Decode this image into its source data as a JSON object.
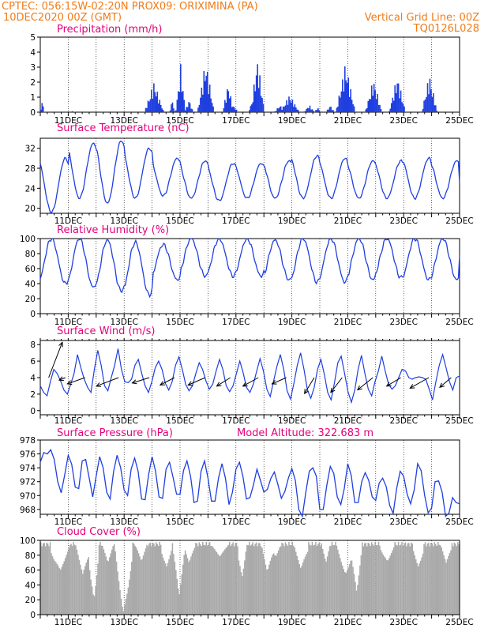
{
  "header": {
    "line1_left": "CPTEC:   056:15W-02:20N   PROX09: ORIXIMINA (PA)",
    "line2_left": "10DEC2020 00Z (GMT)",
    "line2_right": "Vertical Grid Line: 00Z",
    "line3_right": "TQ0126L028"
  },
  "colors": {
    "header": "#f07c18",
    "title": "#e4007c",
    "series": "#1f3fe0",
    "cloud": "#a9a9a9",
    "arrow": "#000000"
  },
  "chart_data": [
    {
      "type": "bar",
      "title": "Precipitation (mm/h)",
      "ylim": [
        0,
        5
      ],
      "yticks": [
        "0",
        "1",
        "2",
        "3",
        "4",
        "5"
      ],
      "xticks": [
        "11DEC",
        "13DEC",
        "15DEC",
        "17DEC",
        "19DEC",
        "21DEC",
        "23DEC",
        "25DEC"
      ],
      "x_start_day": 10,
      "events": [
        {
          "day": 10.05,
          "peak": 0.8,
          "width": 0.08
        },
        {
          "day": 11.15,
          "peak": 0.1,
          "width": 0.08
        },
        {
          "day": 14.05,
          "peak": 2.1,
          "width": 0.35
        },
        {
          "day": 14.7,
          "peak": 0.9,
          "width": 0.1
        },
        {
          "day": 15.0,
          "peak": 3.2,
          "width": 0.18
        },
        {
          "day": 15.3,
          "peak": 0.9,
          "width": 0.15
        },
        {
          "day": 15.9,
          "peak": 3.6,
          "width": 0.3
        },
        {
          "day": 16.7,
          "peak": 2.0,
          "width": 0.2
        },
        {
          "day": 16.9,
          "peak": 0.5,
          "width": 0.15
        },
        {
          "day": 17.5,
          "peak": 0.5,
          "width": 0.08
        },
        {
          "day": 17.75,
          "peak": 3.7,
          "width": 0.25
        },
        {
          "day": 18.55,
          "peak": 0.5,
          "width": 0.2
        },
        {
          "day": 18.9,
          "peak": 1.2,
          "width": 0.35
        },
        {
          "day": 19.6,
          "peak": 0.5,
          "width": 0.2
        },
        {
          "day": 19.9,
          "peak": 0.4,
          "width": 0.1
        },
        {
          "day": 20.35,
          "peak": 0.5,
          "width": 0.15
        },
        {
          "day": 20.9,
          "peak": 3.4,
          "width": 0.35
        },
        {
          "day": 21.9,
          "peak": 2.3,
          "width": 0.3
        },
        {
          "day": 22.75,
          "peak": 2.5,
          "width": 0.3
        },
        {
          "day": 23.9,
          "peak": 2.6,
          "width": 0.28
        }
      ]
    },
    {
      "type": "line",
      "title": "Surface Temperature (nC)",
      "ylim": [
        19,
        34
      ],
      "yticks": [
        "20",
        "24",
        "28",
        "32"
      ],
      "xticks": [
        "11DEC",
        "13DEC",
        "15DEC",
        "17DEC",
        "19DEC",
        "21DEC",
        "23DEC",
        "25DEC"
      ],
      "x_start_day": 10,
      "daily_min": [
        19.2,
        22.0,
        21.0,
        22.0,
        22.5,
        22.0,
        21.5,
        22.0,
        22.0,
        22.0,
        22.0,
        22.0,
        22.0,
        22.0,
        22.0,
        23.0
      ],
      "daily_max": [
        30.0,
        33.0,
        33.5,
        32.0,
        30.0,
        29.5,
        29.0,
        29.0,
        29.5,
        30.5,
        30.0,
        29.5,
        29.5,
        30.0,
        29.5,
        31.5
      ],
      "end_value": 25.0
    },
    {
      "type": "line",
      "title": "Relative Humidity (%)",
      "ylim": [
        0,
        100
      ],
      "yticks": [
        "0",
        "20",
        "40",
        "60",
        "80",
        "100"
      ],
      "xticks": [
        "11DEC",
        "13DEC",
        "15DEC",
        "17DEC",
        "19DEC",
        "21DEC",
        "23DEC",
        "25DEC"
      ],
      "x_start_day": 10,
      "daily_max": [
        100,
        100,
        98,
        95,
        92,
        100,
        100,
        100,
        98,
        100,
        100,
        100,
        100,
        100,
        100,
        100
      ],
      "daily_min": [
        40,
        35,
        30,
        25,
        45,
        50,
        50,
        50,
        45,
        42,
        42,
        45,
        48,
        45,
        45,
        40
      ],
      "end_value": 78
    },
    {
      "type": "line",
      "title": "Surface Wind (m/s)",
      "ylim": [
        -0.5,
        8.5
      ],
      "yticks": [
        "0",
        "2",
        "4",
        "6",
        "8"
      ],
      "xticks": [
        "11DEC",
        "13DEC",
        "15DEC",
        "17DEC",
        "19DEC",
        "21DEC",
        "23DEC",
        "25DEC"
      ],
      "x_start_day": 10,
      "values": [
        3,
        2.2,
        1.8,
        3.5,
        5.0,
        4.5,
        3.6,
        2.5,
        2.0,
        3.2,
        4.5,
        6.8,
        5.2,
        3.8,
        2.8,
        2.2,
        5.0,
        7.3,
        5.5,
        3.0,
        2.4,
        4.0,
        5.5,
        7.5,
        5.0,
        3.5,
        3.4,
        3.8,
        5.5,
        6.2,
        4.5,
        3.0,
        2.2,
        3.5,
        5.2,
        6.0,
        5.0,
        3.3,
        2.5,
        3.5,
        5.5,
        6.5,
        5.0,
        3.2,
        2.4,
        3.0,
        4.5,
        5.8,
        5.0,
        3.6,
        2.6,
        3.2,
        4.8,
        6.2,
        5.0,
        3.0,
        2.3,
        3.0,
        4.5,
        6.0,
        4.6,
        2.8,
        2.2,
        3.2,
        4.8,
        6.3,
        4.8,
        2.6,
        1.7,
        3.6,
        5.4,
        6.8,
        5.0,
        2.4,
        1.4,
        3.3,
        5.5,
        7.0,
        5.0,
        2.5,
        1.5,
        2.8,
        5.0,
        6.2,
        4.4,
        2.2,
        1.3,
        3.4,
        5.8,
        6.6,
        4.5,
        2.3,
        1.0,
        2.5,
        5.0,
        6.7,
        4.5,
        2.6,
        1.8,
        3.5,
        4.8,
        6.6,
        4.8,
        3.2,
        2.6,
        3.0,
        4.0,
        5.0,
        4.8,
        4.0,
        3.8,
        4.0,
        4.1,
        4.0,
        3.8,
        2.6,
        1.3,
        3.5,
        5.5,
        6.8,
        5.2,
        3.5,
        2.5,
        4.0,
        4.2
      ],
      "vectors": [
        {
          "day": 10.3,
          "len": 0.8,
          "dx": 0.48,
          "dy": 1.24
        },
        {
          "day": 10.9,
          "len": 0.6,
          "dx": -0.22,
          "dy": -0.09
        },
        {
          "day": 11.6,
          "len": 0.8,
          "dx": -0.62,
          "dy": -0.22
        },
        {
          "day": 12.8,
          "len": 0.95,
          "dx": -0.78,
          "dy": -0.3
        },
        {
          "day": 13.9,
          "len": 0.75,
          "dx": -0.6,
          "dy": -0.19
        },
        {
          "day": 14.8,
          "len": 0.75,
          "dx": -0.5,
          "dy": -0.26
        },
        {
          "day": 15.9,
          "len": 0.75,
          "dx": -0.6,
          "dy": -0.26
        },
        {
          "day": 16.8,
          "len": 0.7,
          "dx": -0.48,
          "dy": -0.3
        },
        {
          "day": 17.8,
          "len": 0.75,
          "dx": -0.54,
          "dy": -0.3
        },
        {
          "day": 18.8,
          "len": 0.7,
          "dx": -0.5,
          "dy": -0.22
        },
        {
          "day": 19.8,
          "len": 0.7,
          "dx": -0.34,
          "dy": -0.56
        },
        {
          "day": 20.8,
          "len": 0.7,
          "dx": -0.4,
          "dy": -0.52
        },
        {
          "day": 21.9,
          "len": 0.75,
          "dx": -0.54,
          "dy": -0.43
        },
        {
          "day": 22.9,
          "len": 0.7,
          "dx": -0.5,
          "dy": -0.3
        },
        {
          "day": 23.9,
          "len": 0.8,
          "dx": -0.66,
          "dy": -0.37
        },
        {
          "day": 24.7,
          "len": 0.55,
          "dx": -0.4,
          "dy": -0.34
        }
      ]
    },
    {
      "type": "line",
      "title": "Surface Pressure (hPa)",
      "subtitle": "Model Altitude: 322.683 m",
      "ylim": [
        967.3,
        978
      ],
      "yticks": [
        "968",
        "970",
        "972",
        "974",
        "976",
        "978"
      ],
      "xticks": [
        "11DEC",
        "13DEC",
        "15DEC",
        "17DEC",
        "19DEC",
        "21DEC",
        "23DEC",
        "25DEC"
      ],
      "x_start_day": 10,
      "values": [
        974.8,
        976.2,
        976.0,
        976.6,
        975.2,
        972.0,
        970.4,
        973.0,
        975.8,
        974.5,
        971.2,
        971.0,
        975.0,
        975.2,
        972.5,
        969.8,
        972.8,
        975.6,
        974.0,
        970.5,
        969.5,
        973.5,
        975.8,
        974.0,
        970.8,
        970.0,
        973.8,
        975.4,
        973.5,
        969.5,
        969.4,
        973.0,
        975.6,
        973.5,
        969.8,
        969.6,
        973.8,
        974.8,
        972.6,
        970.2,
        970.2,
        973.6,
        975.0,
        972.8,
        969.0,
        969.2,
        973.5,
        975.0,
        972.5,
        969.2,
        969.2,
        972.5,
        974.6,
        972.5,
        968.7,
        970.5,
        973.8,
        974.8,
        972.8,
        969.5,
        969.7,
        971.5,
        973.8,
        972.2,
        970.5,
        970.9,
        972.5,
        973.4,
        971.6,
        969.6,
        970.6,
        972.5,
        973.9,
        972.2,
        968.0,
        967.0,
        970.5,
        973.5,
        974.0,
        972.8,
        968.0,
        968.0,
        971.5,
        974.2,
        973.2,
        969.8,
        968.7,
        971.0,
        974.6,
        972.9,
        969.0,
        969.0,
        972.0,
        973.3,
        972.2,
        969.8,
        969.3,
        971.8,
        972.5,
        971.3,
        968.6,
        967.4,
        971.0,
        973.5,
        972.8,
        970.2,
        968.8,
        970.8,
        974.6,
        973.6,
        970.0,
        967.5,
        968.2,
        972.0,
        972.1,
        970.5,
        967.0,
        967.5,
        969.7,
        969.0,
        968.8
      ]
    },
    {
      "type": "bar",
      "title": "Cloud Cover (%)",
      "ylim": [
        0,
        100
      ],
      "yticks": [
        "0",
        "20",
        "40",
        "60",
        "80",
        "100"
      ],
      "xticks": [
        "11DEC",
        "13DEC",
        "15DEC",
        "17DEC",
        "19DEC",
        "21DEC",
        "23DEC",
        "25DEC"
      ],
      "x_start_day": 10,
      "base": 95,
      "dips": [
        {
          "day": 10.7,
          "value": 60,
          "width": 0.35
        },
        {
          "day": 11.5,
          "value": 55,
          "width": 0.25
        },
        {
          "day": 11.9,
          "value": 20,
          "width": 0.18
        },
        {
          "day": 12.4,
          "value": 70,
          "width": 0.2
        },
        {
          "day": 12.95,
          "value": 3,
          "width": 0.3
        },
        {
          "day": 13.6,
          "value": 72,
          "width": 0.2
        },
        {
          "day": 14.5,
          "value": 65,
          "width": 0.2
        },
        {
          "day": 14.95,
          "value": 25,
          "width": 0.22
        },
        {
          "day": 15.3,
          "value": 70,
          "width": 0.2
        },
        {
          "day": 16.4,
          "value": 78,
          "width": 0.3
        },
        {
          "day": 17.2,
          "value": 50,
          "width": 0.15
        },
        {
          "day": 18.1,
          "value": 58,
          "width": 0.2
        },
        {
          "day": 18.4,
          "value": 78,
          "width": 0.15
        },
        {
          "day": 19.3,
          "value": 62,
          "width": 0.25
        },
        {
          "day": 20.2,
          "value": 70,
          "width": 0.15
        },
        {
          "day": 20.9,
          "value": 55,
          "width": 0.3
        },
        {
          "day": 21.3,
          "value": 30,
          "width": 0.2
        },
        {
          "day": 22.4,
          "value": 72,
          "width": 0.25
        },
        {
          "day": 23.5,
          "value": 65,
          "width": 0.2
        },
        {
          "day": 24.5,
          "value": 70,
          "width": 0.2
        }
      ]
    }
  ]
}
